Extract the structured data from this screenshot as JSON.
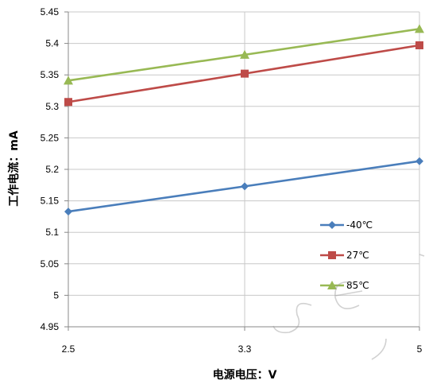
{
  "chart_data": {
    "type": "line",
    "xlabel": "电源电压：V",
    "ylabel": "工作电流：mA",
    "x_ticks": [
      "2.5",
      "3.3",
      "5"
    ],
    "y_ticks": [
      "4.95",
      "5",
      "5.05",
      "5.1",
      "5.15",
      "5.2",
      "5.25",
      "5.3",
      "5.35",
      "5.4",
      "5.45"
    ],
    "ylim": [
      4.95,
      5.45
    ],
    "x": [
      "2.5",
      "3.3",
      "5"
    ],
    "grid": true,
    "legend_position": "right",
    "series": [
      {
        "name": "-40℃",
        "values": [
          5.133,
          5.173,
          5.213
        ],
        "color": "#4a7ebb",
        "marker": "diamond"
      },
      {
        "name": "27℃",
        "values": [
          5.307,
          5.352,
          5.397
        ],
        "color": "#be4b48",
        "marker": "square"
      },
      {
        "name": "85℃",
        "values": [
          5.341,
          5.382,
          5.423
        ],
        "color": "#98b954",
        "marker": "triangle"
      }
    ]
  }
}
